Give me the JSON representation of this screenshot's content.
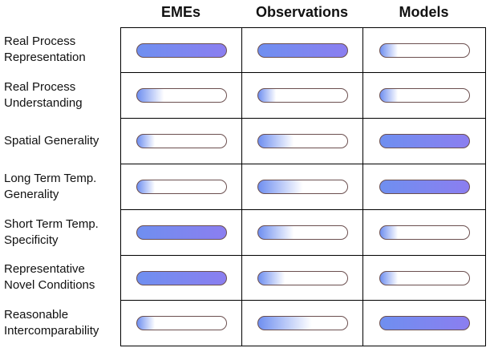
{
  "columns": [
    {
      "key": "emes",
      "label": "EMEs"
    },
    {
      "key": "observations",
      "label": "Observations"
    },
    {
      "key": "models",
      "label": "Models"
    }
  ],
  "colors": {
    "fill_start": "#6f8ff0",
    "fill_end": "#8b7ef0",
    "empty": "#ffffff",
    "bar_border": "#6b4f4f",
    "grid_line": "#000000"
  },
  "rows": [
    {
      "label": "Real Process\nRepresentation",
      "levels": [
        1.0,
        1.0,
        0.2
      ]
    },
    {
      "label": "Real Process\nUnderstanding",
      "levels": [
        0.3,
        0.2,
        0.2
      ]
    },
    {
      "label": "Spatial Generality",
      "levels": [
        0.2,
        0.4,
        1.0
      ]
    },
    {
      "label": "Long Term Temp.\nGenerality",
      "levels": [
        0.2,
        0.5,
        1.0
      ]
    },
    {
      "label": "Short Term Temp.\nSpecificity",
      "levels": [
        1.0,
        0.4,
        0.2
      ]
    },
    {
      "label": "Representative\nNovel Conditions",
      "levels": [
        1.0,
        0.3,
        0.2
      ]
    },
    {
      "label": "Reasonable\nIntercomparability",
      "levels": [
        0.2,
        0.6,
        1.0
      ]
    }
  ]
}
